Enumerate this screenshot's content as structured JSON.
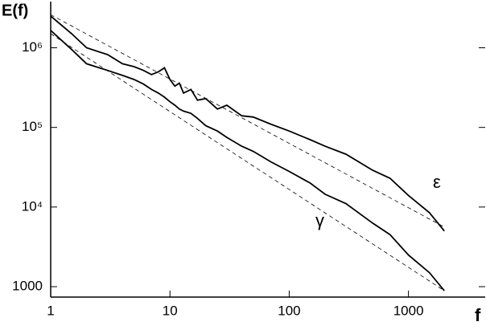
{
  "chart_data": {
    "type": "line",
    "xlabel": "f",
    "ylabel": "E(f)",
    "log_x": true,
    "log_y": true,
    "xlim": [
      1,
      4400
    ],
    "ylim": [
      740,
      3800000
    ],
    "xticks": [
      1,
      10,
      100,
      1000
    ],
    "yticks": [
      {
        "value": 1000,
        "label": "1000"
      },
      {
        "value": 10000,
        "label": "10⁴"
      },
      {
        "value": 100000,
        "label": "10⁵"
      },
      {
        "value": 1000000,
        "label": "10⁶"
      }
    ],
    "x": [
      1,
      1.5,
      2,
      3,
      4,
      5,
      6,
      7,
      8,
      9,
      10,
      11,
      12,
      13,
      15,
      17,
      20,
      25,
      30,
      40,
      50,
      70,
      100,
      150,
      200,
      300,
      500,
      700,
      1000,
      1500,
      2000
    ],
    "series": [
      {
        "color": "#000000",
        "values": [
          2500000,
          1500000,
          1000000,
          820000,
          630000,
          580000,
          520000,
          460000,
          500000,
          560000,
          400000,
          330000,
          360000,
          270000,
          300000,
          220000,
          230000,
          170000,
          190000,
          140000,
          135000,
          110000,
          90000,
          70000,
          58000,
          46000,
          29000,
          23000,
          14000,
          8500,
          5000
        ]
      },
      {
        "color": "#000000",
        "values": [
          1650000,
          950000,
          630000,
          520000,
          450000,
          400000,
          350000,
          300000,
          270000,
          240000,
          210000,
          190000,
          170000,
          160000,
          150000,
          130000,
          105000,
          90000,
          75000,
          58000,
          50000,
          37000,
          28000,
          20000,
          14500,
          11000,
          6300,
          4500,
          2500,
          1500,
          890
        ]
      },
      {
        "color": "#000000",
        "dashed": true,
        "x": [
          1,
          2000
        ],
        "values": [
          2600000,
          5600
        ]
      },
      {
        "color": "#000000",
        "dashed": true,
        "x": [
          1,
          2000
        ],
        "values": [
          1500000,
          890
        ]
      }
    ],
    "annotations": [
      "ε",
      "γ"
    ]
  }
}
